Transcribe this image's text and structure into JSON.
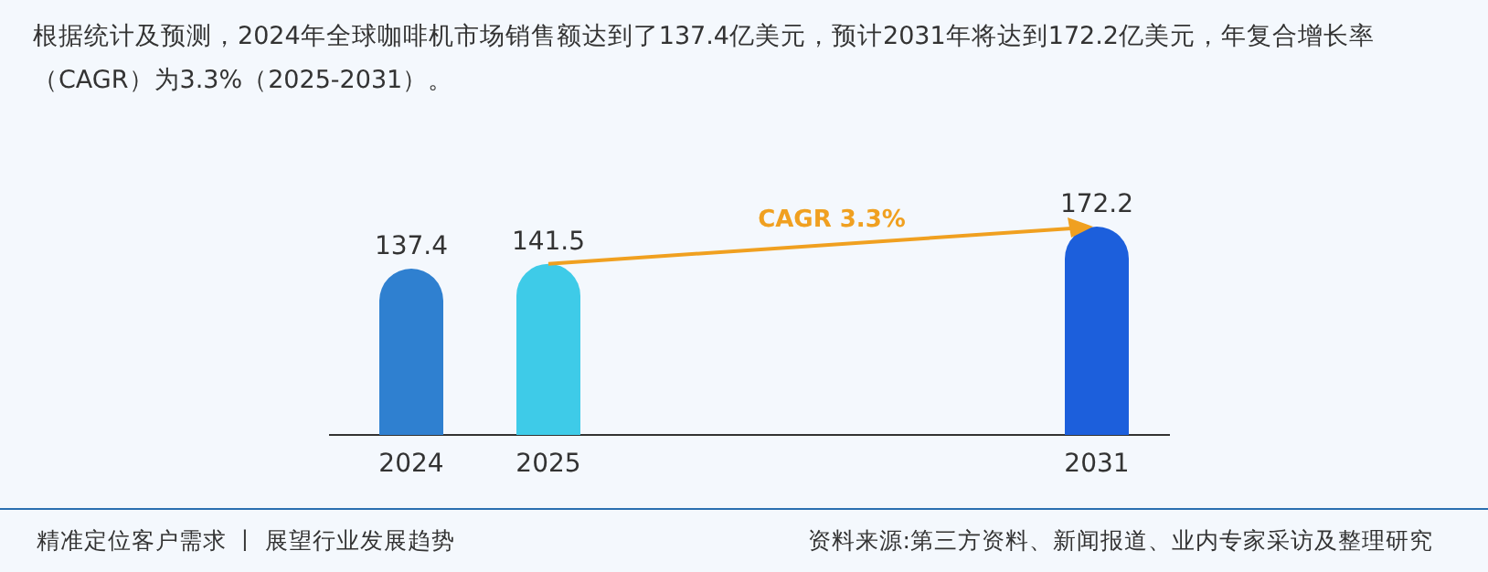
{
  "chart_data": {
    "type": "bar",
    "title": "根据统计及预测，2024年全球咖啡机市场销售额达到了137.4亿美元，预计2031年将达到172.2亿美元，年复合增长率（CAGR）为3.3%（2025-2031）。",
    "categories": [
      "2024",
      "2025",
      null,
      null,
      null,
      "2031"
    ],
    "values": [
      137.4,
      141.5,
      null,
      null,
      null,
      172.2
    ],
    "colors": [
      "#2f80d0",
      "#3ecbe8",
      null,
      null,
      null,
      "#1c5fdc"
    ],
    "relative": false,
    "data_labels": true,
    "annotations": [
      "CAGR 3.3%",
      "精准定位客户需求 丨 展望行业发展趋势",
      "资料来源:第三方资料、新闻报道、业内专家采访及整理研究"
    ]
  }
}
